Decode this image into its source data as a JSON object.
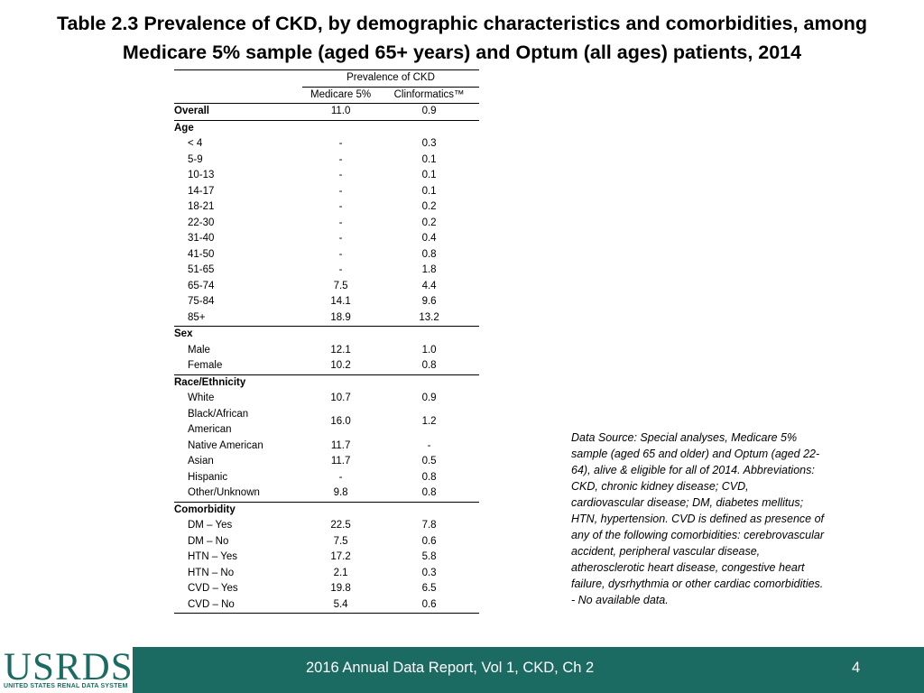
{
  "title_line1": "Table 2.3  Prevalence of CKD, by demographic characteristics and comorbidities, among",
  "title_line2": "Medicare 5% sample (aged 65+ years) and Optum (all ages) patients, 2014",
  "table": {
    "header_group": "Prevalence of CKD",
    "col1": "Medicare 5%",
    "col2": "Clinformatics™",
    "overall": {
      "label": "Overall",
      "m": "11.0",
      "c": "0.9"
    },
    "age": {
      "label": "Age",
      "rows": [
        {
          "label": "< 4",
          "m": "-",
          "c": "0.3"
        },
        {
          "label": "5-9",
          "m": "-",
          "c": "0.1"
        },
        {
          "label": "10-13",
          "m": "-",
          "c": "0.1"
        },
        {
          "label": "14-17",
          "m": "-",
          "c": "0.1"
        },
        {
          "label": "18-21",
          "m": "-",
          "c": "0.2"
        },
        {
          "label": "22-30",
          "m": "-",
          "c": "0.2"
        },
        {
          "label": "31-40",
          "m": "-",
          "c": "0.4"
        },
        {
          "label": "41-50",
          "m": "-",
          "c": "0.8"
        },
        {
          "label": "51-65",
          "m": "-",
          "c": "1.8"
        },
        {
          "label": "65-74",
          "m": "7.5",
          "c": "4.4"
        },
        {
          "label": "75-84",
          "m": "14.1",
          "c": "9.6"
        },
        {
          "label": "85+",
          "m": "18.9",
          "c": "13.2"
        }
      ]
    },
    "sex": {
      "label": "Sex",
      "rows": [
        {
          "label": "Male",
          "m": "12.1",
          "c": "1.0"
        },
        {
          "label": "Female",
          "m": "10.2",
          "c": "0.8"
        }
      ]
    },
    "race": {
      "label": "Race/Ethnicity",
      "rows": [
        {
          "label": "White",
          "m": "10.7",
          "c": "0.9"
        },
        {
          "label": "Black/African",
          "label2": "American",
          "m": "16.0",
          "c": "1.2"
        },
        {
          "label": "Native American",
          "m": "11.7",
          "c": "-"
        },
        {
          "label": "Asian",
          "m": "11.7",
          "c": "0.5"
        },
        {
          "label": "Hispanic",
          "m": "-",
          "c": "0.8"
        },
        {
          "label": "Other/Unknown",
          "m": "9.8",
          "c": "0.8"
        }
      ]
    },
    "comorbidity": {
      "label": "Comorbidity",
      "rows": [
        {
          "label": "DM – Yes",
          "m": "22.5",
          "c": "7.8"
        },
        {
          "label": "DM – No",
          "m": "7.5",
          "c": "0.6"
        },
        {
          "label": "HTN – Yes",
          "m": "17.2",
          "c": "5.8"
        },
        {
          "label": "HTN – No",
          "m": "2.1",
          "c": "0.3"
        },
        {
          "label": "CVD – Yes",
          "m": "19.8",
          "c": "6.5"
        },
        {
          "label": "CVD – No",
          "m": "5.4",
          "c": "0.6"
        }
      ]
    }
  },
  "notes": "Data Source: Special analyses, Medicare 5% sample (aged 65 and older) and Optum (aged 22-64), alive & eligible for all of 2014. Abbreviations: CKD, chronic kidney disease; CVD, cardiovascular disease; DM, diabetes mellitus; HTN, hypertension. CVD is defined as presence of any of the following comorbidities: cerebrovascular accident, peripheral vascular disease, atherosclerotic heart disease, congestive heart failure, dysrhythmia or other cardiac comorbidities.",
  "notes_na": "- No available data.",
  "footer": {
    "logo_word": "USRDS",
    "logo_sub": "UNITED STATES RENAL DATA SYSTEM",
    "report": "2016 Annual Data Report, Vol 1, CKD, Ch 2",
    "page": "4"
  },
  "colors": {
    "footer_bg": "#1c6b62",
    "logo": "#1c6b62"
  }
}
